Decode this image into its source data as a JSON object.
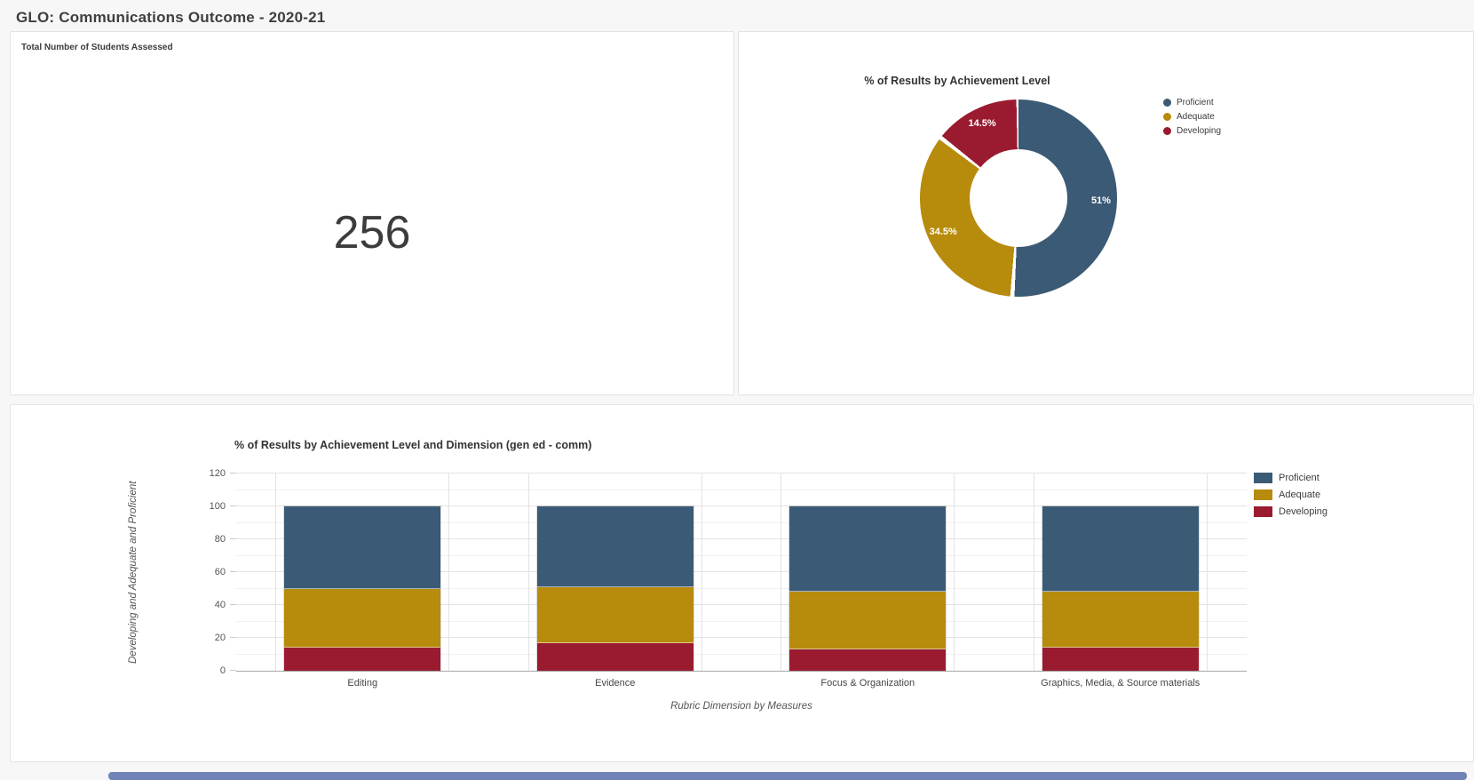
{
  "page": {
    "title": "GLO: Communications Outcome - 2020-21"
  },
  "theme": {
    "background": "#f7f7f7",
    "card_background": "#ffffff",
    "card_border": "#e3e3e3",
    "proficient": "#3b5a75",
    "adequate": "#b78b0b",
    "developing": "#9a1b30",
    "scrollbar": "#7083b8"
  },
  "cards": {
    "students_assessed": {
      "label": "Total Number of Students Assessed",
      "value": "256"
    },
    "donut": {
      "title": "% of Results by Achievement Level"
    },
    "stacked_bar": {
      "title": "% of Results by Achievement Level and Dimension (gen ed - comm)",
      "xlabel": "Rubric Dimension by Measures",
      "ylabel": "Developing and Adequate and Proficient"
    }
  },
  "chart_data": [
    {
      "type": "number",
      "title": "Total Number of Students Assessed",
      "value": 256
    },
    {
      "type": "pie",
      "subtype": "donut",
      "title": "% of Results by Achievement Level",
      "labels": [
        "Proficient",
        "Adequate",
        "Developing"
      ],
      "values": [
        51,
        34.5,
        14.5
      ],
      "value_labels": [
        "51%",
        "34.5%",
        "14.5%"
      ],
      "colors": [
        "#3b5a75",
        "#b78b0b",
        "#9a1b30"
      ],
      "start_angle_deg": 0,
      "direction": "clockwise",
      "inner_radius_ratio": 0.5,
      "legend_position": "right"
    },
    {
      "type": "bar",
      "stacked": true,
      "title": "% of Results by Achievement Level and Dimension (gen ed - comm)",
      "categories": [
        "Editing",
        "Evidence",
        "Focus & Organization",
        "Graphics, Media, & Source materials"
      ],
      "series": [
        {
          "name": "Developing",
          "color": "#9a1b30",
          "values": [
            14,
            17,
            13,
            14
          ]
        },
        {
          "name": "Adequate",
          "color": "#b78b0b",
          "values": [
            36,
            34,
            35,
            34
          ]
        },
        {
          "name": "Proficient",
          "color": "#3b5a75",
          "values": [
            50,
            49,
            52,
            52
          ]
        }
      ],
      "xlabel": "Rubric Dimension by Measures",
      "ylabel": "Developing and Adequate and Proficient",
      "ylim": [
        0,
        120
      ],
      "yticks": [
        0,
        20,
        40,
        60,
        80,
        100,
        120
      ],
      "minor_grid_step": 10,
      "grid": true,
      "legend_position": "right",
      "legend_order": [
        "Proficient",
        "Adequate",
        "Developing"
      ]
    }
  ]
}
